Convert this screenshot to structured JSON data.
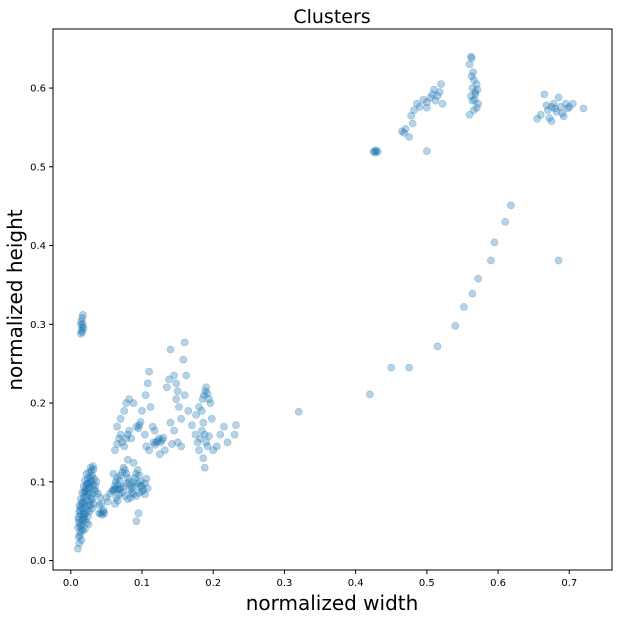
{
  "chart_data": {
    "type": "scatter",
    "title": "Clusters",
    "xlabel": "normalized width",
    "ylabel": "normalized height",
    "xlim": [
      -0.025,
      0.76
    ],
    "ylim": [
      -0.012,
      0.675
    ],
    "x_ticks": [
      "0.0",
      "0.1",
      "0.2",
      "0.3",
      "0.4",
      "0.5",
      "0.6",
      "0.7"
    ],
    "y_ticks": [
      "0.0",
      "0.1",
      "0.2",
      "0.3",
      "0.4",
      "0.5",
      "0.6"
    ],
    "grid": false,
    "legend": "none",
    "marker_color": "#1f77b4",
    "marker_opacity": 0.33,
    "points": [
      [
        0.01,
        0.015
      ],
      [
        0.012,
        0.022
      ],
      [
        0.011,
        0.03
      ],
      [
        0.013,
        0.036
      ],
      [
        0.01,
        0.042
      ],
      [
        0.015,
        0.04
      ],
      [
        0.012,
        0.048
      ],
      [
        0.016,
        0.052
      ],
      [
        0.011,
        0.055
      ],
      [
        0.014,
        0.058
      ],
      [
        0.018,
        0.06
      ],
      [
        0.013,
        0.064
      ],
      [
        0.017,
        0.066
      ],
      [
        0.02,
        0.068
      ],
      [
        0.012,
        0.07
      ],
      [
        0.016,
        0.072
      ],
      [
        0.019,
        0.074
      ],
      [
        0.022,
        0.076
      ],
      [
        0.014,
        0.078
      ],
      [
        0.018,
        0.08
      ],
      [
        0.021,
        0.082
      ],
      [
        0.024,
        0.084
      ],
      [
        0.016,
        0.086
      ],
      [
        0.02,
        0.088
      ],
      [
        0.023,
        0.09
      ],
      [
        0.026,
        0.092
      ],
      [
        0.018,
        0.094
      ],
      [
        0.022,
        0.096
      ],
      [
        0.025,
        0.098
      ],
      [
        0.028,
        0.1
      ],
      [
        0.02,
        0.102
      ],
      [
        0.024,
        0.104
      ],
      [
        0.027,
        0.106
      ],
      [
        0.03,
        0.108
      ],
      [
        0.022,
        0.11
      ],
      [
        0.026,
        0.112
      ],
      [
        0.029,
        0.114
      ],
      [
        0.032,
        0.116
      ],
      [
        0.028,
        0.118
      ],
      [
        0.031,
        0.12
      ],
      [
        0.015,
        0.045
      ],
      [
        0.017,
        0.05
      ],
      [
        0.019,
        0.055
      ],
      [
        0.021,
        0.06
      ],
      [
        0.023,
        0.065
      ],
      [
        0.025,
        0.07
      ],
      [
        0.027,
        0.075
      ],
      [
        0.029,
        0.08
      ],
      [
        0.031,
        0.085
      ],
      [
        0.033,
        0.09
      ],
      [
        0.012,
        0.062
      ],
      [
        0.014,
        0.068
      ],
      [
        0.016,
        0.074
      ],
      [
        0.018,
        0.058
      ],
      [
        0.02,
        0.052
      ],
      [
        0.022,
        0.048
      ],
      [
        0.024,
        0.056
      ],
      [
        0.026,
        0.062
      ],
      [
        0.028,
        0.07
      ],
      [
        0.03,
        0.078
      ],
      [
        0.034,
        0.095
      ],
      [
        0.036,
        0.1
      ],
      [
        0.035,
        0.088
      ],
      [
        0.033,
        0.104
      ],
      [
        0.032,
        0.072
      ],
      [
        0.03,
        0.066
      ],
      [
        0.013,
        0.032
      ],
      [
        0.015,
        0.026
      ],
      [
        0.02,
        0.04
      ],
      [
        0.025,
        0.046
      ],
      [
        0.011,
        0.052
      ],
      [
        0.013,
        0.044
      ],
      [
        0.017,
        0.038
      ],
      [
        0.019,
        0.086
      ],
      [
        0.021,
        0.092
      ],
      [
        0.023,
        0.098
      ],
      [
        0.025,
        0.086
      ],
      [
        0.027,
        0.094
      ],
      [
        0.029,
        0.102
      ],
      [
        0.031,
        0.096
      ],
      [
        0.04,
        0.06
      ],
      [
        0.042,
        0.06
      ],
      [
        0.045,
        0.062
      ],
      [
        0.047,
        0.06
      ],
      [
        0.044,
        0.058
      ],
      [
        0.046,
        0.064
      ],
      [
        0.04,
        0.07
      ],
      [
        0.043,
        0.072
      ],
      [
        0.038,
        0.085
      ],
      [
        0.041,
        0.08
      ],
      [
        0.05,
        0.08
      ],
      [
        0.052,
        0.075
      ],
      [
        0.055,
        0.085
      ],
      [
        0.06,
        0.09
      ],
      [
        0.062,
        0.095
      ],
      [
        0.058,
        0.088
      ],
      [
        0.06,
        0.11
      ],
      [
        0.065,
        0.105
      ],
      [
        0.063,
        0.1
      ],
      [
        0.066,
        0.096
      ],
      [
        0.068,
        0.102
      ],
      [
        0.07,
        0.108
      ],
      [
        0.072,
        0.112
      ],
      [
        0.074,
        0.118
      ],
      [
        0.076,
        0.115
      ],
      [
        0.078,
        0.11
      ],
      [
        0.08,
        0.105
      ],
      [
        0.082,
        0.1
      ],
      [
        0.084,
        0.096
      ],
      [
        0.086,
        0.092
      ],
      [
        0.088,
        0.1
      ],
      [
        0.09,
        0.105
      ],
      [
        0.092,
        0.11
      ],
      [
        0.094,
        0.115
      ],
      [
        0.096,
        0.108
      ],
      [
        0.098,
        0.1
      ],
      [
        0.1,
        0.095
      ],
      [
        0.102,
        0.09
      ],
      [
        0.104,
        0.098
      ],
      [
        0.106,
        0.104
      ],
      [
        0.064,
        0.08
      ],
      [
        0.068,
        0.084
      ],
      [
        0.072,
        0.086
      ],
      [
        0.076,
        0.082
      ],
      [
        0.08,
        0.078
      ],
      [
        0.084,
        0.08
      ],
      [
        0.088,
        0.084
      ],
      [
        0.092,
        0.082
      ],
      [
        0.096,
        0.086
      ],
      [
        0.1,
        0.088
      ],
      [
        0.062,
        0.072
      ],
      [
        0.066,
        0.076
      ],
      [
        0.07,
        0.092
      ],
      [
        0.074,
        0.094
      ],
      [
        0.078,
        0.098
      ],
      [
        0.082,
        0.09
      ],
      [
        0.086,
        0.086
      ],
      [
        0.09,
        0.094
      ],
      [
        0.094,
        0.098
      ],
      [
        0.098,
        0.094
      ],
      [
        0.06,
        0.09
      ],
      [
        0.063,
        0.091
      ],
      [
        0.066,
        0.09
      ],
      [
        0.069,
        0.091
      ],
      [
        0.108,
        0.092
      ],
      [
        0.104,
        0.084
      ],
      [
        0.092,
        0.05
      ],
      [
        0.095,
        0.06
      ],
      [
        0.088,
        0.124
      ],
      [
        0.08,
        0.128
      ],
      [
        0.062,
        0.14
      ],
      [
        0.065,
        0.148
      ],
      [
        0.068,
        0.155
      ],
      [
        0.07,
        0.16
      ],
      [
        0.072,
        0.15
      ],
      [
        0.075,
        0.145
      ],
      [
        0.078,
        0.155
      ],
      [
        0.08,
        0.16
      ],
      [
        0.082,
        0.165
      ],
      [
        0.085,
        0.155
      ],
      [
        0.07,
        0.18
      ],
      [
        0.075,
        0.19
      ],
      [
        0.078,
        0.2
      ],
      [
        0.082,
        0.205
      ],
      [
        0.088,
        0.2
      ],
      [
        0.092,
        0.17
      ],
      [
        0.095,
        0.168
      ],
      [
        0.096,
        0.172
      ],
      [
        0.098,
        0.176
      ],
      [
        0.065,
        0.17
      ],
      [
        0.1,
        0.19
      ],
      [
        0.105,
        0.21
      ],
      [
        0.108,
        0.225
      ],
      [
        0.11,
        0.24
      ],
      [
        0.112,
        0.195
      ],
      [
        0.115,
        0.17
      ],
      [
        0.118,
        0.165
      ],
      [
        0.104,
        0.16
      ],
      [
        0.106,
        0.145
      ],
      [
        0.11,
        0.14
      ],
      [
        0.12,
        0.15
      ],
      [
        0.122,
        0.152
      ],
      [
        0.124,
        0.155
      ],
      [
        0.126,
        0.15
      ],
      [
        0.128,
        0.153
      ],
      [
        0.13,
        0.156
      ],
      [
        0.118,
        0.147
      ],
      [
        0.116,
        0.15
      ],
      [
        0.125,
        0.135
      ],
      [
        0.132,
        0.14
      ],
      [
        0.135,
        0.22
      ],
      [
        0.138,
        0.23
      ],
      [
        0.14,
        0.268
      ],
      [
        0.145,
        0.235
      ],
      [
        0.148,
        0.225
      ],
      [
        0.15,
        0.215
      ],
      [
        0.152,
        0.195
      ],
      [
        0.14,
        0.175
      ],
      [
        0.145,
        0.165
      ],
      [
        0.15,
        0.15
      ],
      [
        0.155,
        0.145
      ],
      [
        0.158,
        0.255
      ],
      [
        0.16,
        0.277
      ],
      [
        0.162,
        0.235
      ],
      [
        0.165,
        0.19
      ],
      [
        0.17,
        0.172
      ],
      [
        0.142,
        0.148
      ],
      [
        0.155,
        0.18
      ],
      [
        0.148,
        0.205
      ],
      [
        0.16,
        0.21
      ],
      [
        0.175,
        0.16
      ],
      [
        0.178,
        0.15
      ],
      [
        0.18,
        0.14
      ],
      [
        0.182,
        0.155
      ],
      [
        0.184,
        0.165
      ],
      [
        0.186,
        0.175
      ],
      [
        0.188,
        0.16
      ],
      [
        0.19,
        0.15
      ],
      [
        0.192,
        0.145
      ],
      [
        0.194,
        0.158
      ],
      [
        0.185,
        0.205
      ],
      [
        0.187,
        0.21
      ],
      [
        0.189,
        0.215
      ],
      [
        0.19,
        0.22
      ],
      [
        0.192,
        0.212
      ],
      [
        0.194,
        0.205
      ],
      [
        0.196,
        0.2
      ],
      [
        0.188,
        0.118
      ],
      [
        0.186,
        0.13
      ],
      [
        0.184,
        0.19
      ],
      [
        0.2,
        0.14
      ],
      [
        0.205,
        0.145
      ],
      [
        0.21,
        0.16
      ],
      [
        0.215,
        0.17
      ],
      [
        0.22,
        0.15
      ],
      [
        0.23,
        0.16
      ],
      [
        0.232,
        0.172
      ],
      [
        0.18,
        0.195
      ],
      [
        0.176,
        0.185
      ],
      [
        0.198,
        0.18
      ],
      [
        0.014,
        0.288
      ],
      [
        0.015,
        0.292
      ],
      [
        0.016,
        0.296
      ],
      [
        0.017,
        0.3
      ],
      [
        0.015,
        0.304
      ],
      [
        0.016,
        0.308
      ],
      [
        0.017,
        0.312
      ],
      [
        0.014,
        0.3
      ],
      [
        0.018,
        0.295
      ],
      [
        0.016,
        0.29
      ],
      [
        0.32,
        0.189
      ],
      [
        0.42,
        0.211
      ],
      [
        0.45,
        0.245
      ],
      [
        0.475,
        0.245
      ],
      [
        0.515,
        0.272
      ],
      [
        0.54,
        0.298
      ],
      [
        0.552,
        0.322
      ],
      [
        0.564,
        0.339
      ],
      [
        0.572,
        0.358
      ],
      [
        0.59,
        0.381
      ],
      [
        0.595,
        0.404
      ],
      [
        0.61,
        0.43
      ],
      [
        0.618,
        0.451
      ],
      [
        0.685,
        0.381
      ],
      [
        0.5,
        0.52
      ],
      [
        0.425,
        0.519
      ],
      [
        0.427,
        0.52
      ],
      [
        0.429,
        0.521
      ],
      [
        0.431,
        0.519
      ],
      [
        0.428,
        0.518
      ],
      [
        0.465,
        0.545
      ],
      [
        0.468,
        0.543
      ],
      [
        0.47,
        0.548
      ],
      [
        0.475,
        0.538
      ],
      [
        0.48,
        0.555
      ],
      [
        0.478,
        0.565
      ],
      [
        0.482,
        0.572
      ],
      [
        0.486,
        0.58
      ],
      [
        0.49,
        0.576
      ],
      [
        0.495,
        0.585
      ],
      [
        0.5,
        0.582
      ],
      [
        0.505,
        0.588
      ],
      [
        0.508,
        0.592
      ],
      [
        0.512,
        0.584
      ],
      [
        0.515,
        0.59
      ],
      [
        0.518,
        0.595
      ],
      [
        0.52,
        0.605
      ],
      [
        0.522,
        0.58
      ],
      [
        0.51,
        0.598
      ],
      [
        0.5,
        0.575
      ],
      [
        0.56,
        0.566
      ],
      [
        0.562,
        0.59
      ],
      [
        0.564,
        0.6
      ],
      [
        0.566,
        0.61
      ],
      [
        0.565,
        0.62
      ],
      [
        0.563,
        0.615
      ],
      [
        0.567,
        0.585
      ],
      [
        0.568,
        0.595
      ],
      [
        0.57,
        0.605
      ],
      [
        0.572,
        0.58
      ],
      [
        0.562,
        0.64
      ],
      [
        0.563,
        0.638
      ],
      [
        0.56,
        0.63
      ],
      [
        0.57,
        0.575
      ],
      [
        0.566,
        0.572
      ],
      [
        0.564,
        0.584
      ],
      [
        0.568,
        0.592
      ],
      [
        0.571,
        0.598
      ],
      [
        0.655,
        0.561
      ],
      [
        0.66,
        0.566
      ],
      [
        0.665,
        0.592
      ],
      [
        0.668,
        0.578
      ],
      [
        0.67,
        0.572
      ],
      [
        0.672,
        0.562
      ],
      [
        0.675,
        0.576
      ],
      [
        0.678,
        0.58
      ],
      [
        0.68,
        0.574
      ],
      [
        0.682,
        0.57
      ],
      [
        0.685,
        0.588
      ],
      [
        0.688,
        0.576
      ],
      [
        0.69,
        0.568
      ],
      [
        0.692,
        0.564
      ],
      [
        0.695,
        0.58
      ],
      [
        0.698,
        0.574
      ],
      [
        0.7,
        0.576
      ],
      [
        0.705,
        0.58
      ],
      [
        0.72,
        0.574
      ],
      [
        0.675,
        0.558
      ]
    ]
  }
}
